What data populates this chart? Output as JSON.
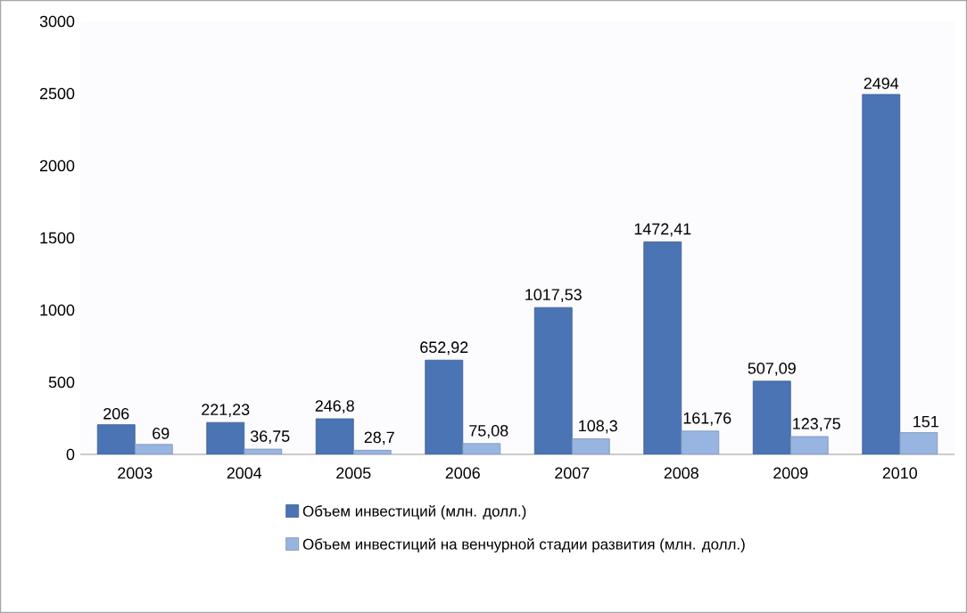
{
  "chart_data": {
    "type": "bar",
    "categories": [
      "2003",
      "2004",
      "2005",
      "2006",
      "2007",
      "2008",
      "2009",
      "2010"
    ],
    "series": [
      {
        "name": "Объем инвестиций (млн. долл.)",
        "color": "#4a74b4",
        "values": [
          206,
          221.23,
          246.8,
          652.92,
          1017.53,
          1472.41,
          507.09,
          2494
        ],
        "value_labels": [
          "206",
          "221,23",
          "246,8",
          "652,92",
          "1017,53",
          "1472,41",
          "507,09",
          "2494"
        ]
      },
      {
        "name": "Объем инвестиций на венчурной стадии развития (млн. долл.)",
        "color": "#98b4e0",
        "values": [
          69,
          36.75,
          28.7,
          75.08,
          108.3,
          161.76,
          123.75,
          151
        ],
        "value_labels": [
          "69",
          "36,75",
          "28,7",
          "75,08",
          "108,3",
          "161,76",
          "123,75",
          "151"
        ]
      }
    ],
    "ylim": [
      0,
      3000
    ],
    "yticks": [
      0,
      500,
      1000,
      1500,
      2000,
      2500,
      3000
    ],
    "grid": false,
    "legend": "bottom"
  }
}
